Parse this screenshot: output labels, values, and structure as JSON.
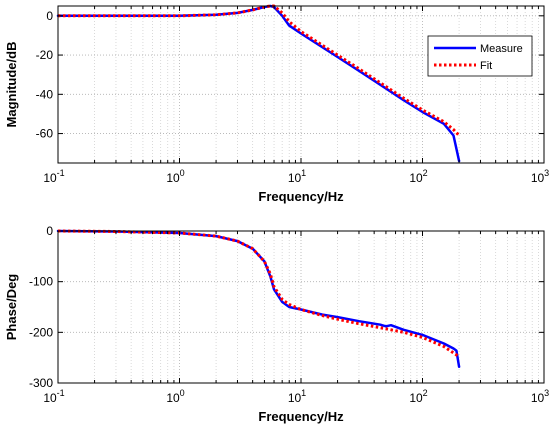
{
  "chart_data": [
    {
      "type": "line",
      "xscale": "log",
      "xlim": [
        0.1,
        1000
      ],
      "ylim": [
        -75,
        5
      ],
      "xlabel": "Frequency/Hz",
      "ylabel": "Magnitude/dB",
      "xtick_values": [
        0.1,
        1,
        10,
        100,
        1000
      ],
      "xtick_labels": [
        {
          "base": "10",
          "exp": "-1"
        },
        {
          "base": "10",
          "exp": "0"
        },
        {
          "base": "10",
          "exp": "1"
        },
        {
          "base": "10",
          "exp": "2"
        },
        {
          "base": "10",
          "exp": "3"
        }
      ],
      "ytick_values": [
        0,
        -20,
        -40,
        -60
      ],
      "ytick_labels": [
        "0",
        "-20",
        "-40",
        "-60"
      ],
      "grid": true,
      "legend_position": "right",
      "series": [
        {
          "name": "Measure",
          "color": "#0000ff",
          "style": "solid",
          "x": [
            0.1,
            0.3,
            1,
            2,
            3,
            4,
            5,
            5.6,
            6,
            7,
            8,
            10,
            15,
            20,
            30,
            50,
            70,
            100,
            150,
            180,
            200
          ],
          "y": [
            0,
            0,
            0,
            0.5,
            1.5,
            3,
            4.5,
            5,
            4.5,
            0,
            -5,
            -9,
            -16,
            -21,
            -28,
            -37,
            -43,
            -49,
            -55,
            -61,
            -74
          ]
        },
        {
          "name": "Fit",
          "color": "#ff0000",
          "style": "dotted",
          "x": [
            0.1,
            0.3,
            1,
            2,
            3,
            4,
            5,
            5.6,
            6,
            7,
            8,
            10,
            15,
            20,
            30,
            50,
            70,
            100,
            150,
            180,
            200
          ],
          "y": [
            0,
            0,
            0,
            0.5,
            1.5,
            3,
            4.5,
            5,
            5,
            1.5,
            -3,
            -8,
            -15,
            -20,
            -27,
            -36,
            -42,
            -48,
            -54,
            -58,
            -61
          ]
        }
      ]
    },
    {
      "type": "line",
      "xscale": "log",
      "xlim": [
        0.1,
        1000
      ],
      "ylim": [
        -300,
        0
      ],
      "xlabel": "Frequency/Hz",
      "ylabel": "Phase/Deg",
      "xtick_values": [
        0.1,
        1,
        10,
        100,
        1000
      ],
      "xtick_labels": [
        {
          "base": "10",
          "exp": "-1"
        },
        {
          "base": "10",
          "exp": "0"
        },
        {
          "base": "10",
          "exp": "1"
        },
        {
          "base": "10",
          "exp": "2"
        },
        {
          "base": "10",
          "exp": "3"
        }
      ],
      "ytick_values": [
        0,
        -100,
        -200,
        -300
      ],
      "ytick_labels": [
        "0",
        "-100",
        "-200",
        "-300"
      ],
      "grid": true,
      "series": [
        {
          "name": "Measure",
          "color": "#0000ff",
          "style": "solid",
          "x": [
            0.1,
            0.3,
            1,
            2,
            3,
            4,
            5,
            5.6,
            6,
            7,
            8,
            10,
            15,
            20,
            30,
            45,
            50,
            55,
            70,
            100,
            150,
            180,
            190,
            200
          ],
          "y": [
            0,
            -1,
            -4,
            -10,
            -20,
            -35,
            -60,
            -90,
            -115,
            -140,
            -150,
            -155,
            -165,
            -170,
            -178,
            -185,
            -188,
            -186,
            -195,
            -205,
            -222,
            -232,
            -236,
            -268
          ]
        },
        {
          "name": "Fit",
          "color": "#ff0000",
          "style": "dotted",
          "x": [
            0.1,
            0.3,
            1,
            2,
            3,
            4,
            5,
            5.6,
            6,
            7,
            8,
            10,
            15,
            20,
            30,
            50,
            70,
            100,
            150,
            200
          ],
          "y": [
            0,
            -1,
            -4,
            -10,
            -20,
            -35,
            -60,
            -85,
            -110,
            -135,
            -145,
            -155,
            -167,
            -174,
            -183,
            -193,
            -200,
            -210,
            -228,
            -248
          ]
        }
      ]
    }
  ]
}
